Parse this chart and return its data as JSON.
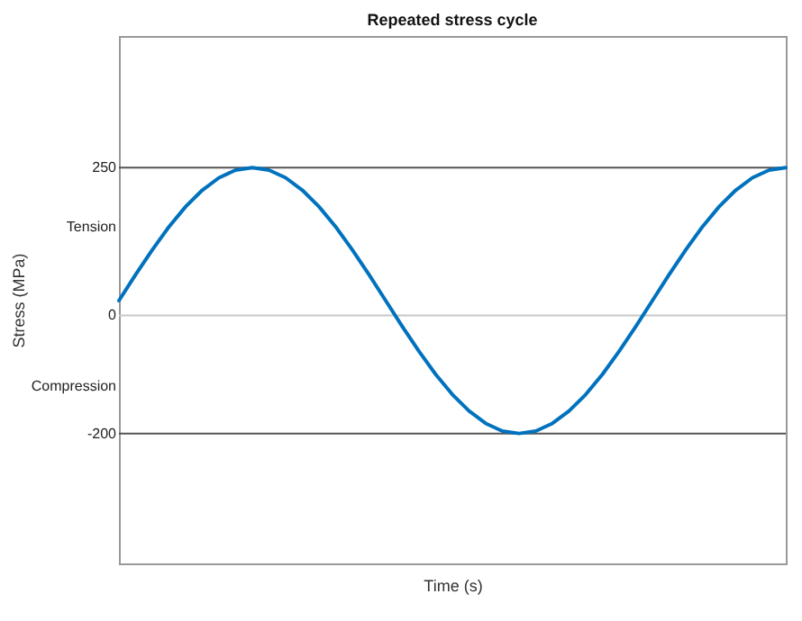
{
  "chart_data": {
    "type": "line",
    "title": "Repeated stress cycle",
    "xlabel": "Time (s)",
    "ylabel": "Stress (MPa)",
    "categories": [
      null,
      null,
      null,
      null,
      null,
      null,
      null,
      null,
      null,
      null,
      null,
      null,
      null,
      null,
      null,
      null,
      null,
      null,
      null,
      null,
      null,
      null,
      null,
      null,
      null,
      null,
      null,
      null,
      null,
      null,
      null,
      null,
      null,
      null,
      null,
      null,
      null,
      null,
      null,
      null,
      null
    ],
    "ylim": [
      -420,
      473
    ],
    "yticks": [
      -200,
      {
        "value": -120,
        "label": "Compression"
      },
      0,
      {
        "value": 150,
        "label": "Tension"
      },
      250
    ],
    "tick_labels": "y",
    "grid": false,
    "line_style": "solid",
    "ref_lines": [
      {
        "axis": "y",
        "value": 0,
        "color": "#c8c8c8"
      },
      {
        "axis": "y",
        "value": 250,
        "color": "#555555"
      },
      {
        "axis": "y",
        "value": -200,
        "color": "#555555"
      }
    ],
    "series": [
      {
        "color": "#0072bd",
        "values": [
          25,
          69,
          111,
          150,
          184,
          212,
          233,
          246,
          250,
          246,
          233,
          212,
          184,
          150,
          111,
          69,
          25,
          -19,
          -61,
          -100,
          -134,
          -162,
          -183,
          -196,
          -200,
          -196,
          -183,
          -162,
          -134,
          -100,
          -61,
          -19,
          25,
          69,
          111,
          150,
          184,
          212,
          233,
          246,
          250
        ]
      }
    ]
  }
}
